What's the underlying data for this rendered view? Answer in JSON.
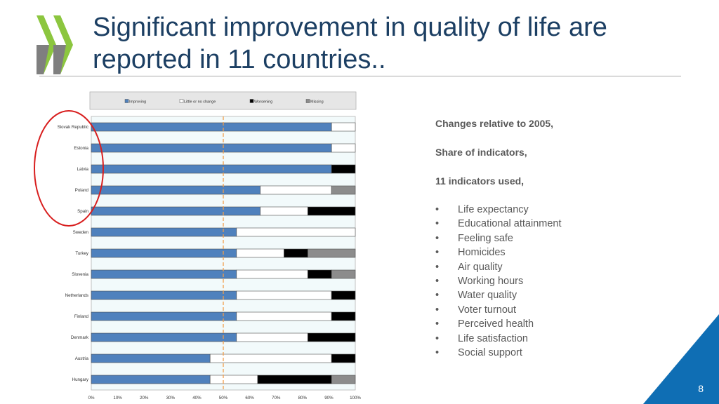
{
  "slide": {
    "title": "Significant improvement in quality of life are reported in 11 countries..",
    "page_number": "8",
    "colors": {
      "title": "#1c3f63",
      "logo_green": "#8cc63f",
      "logo_gray": "#7f7f7f",
      "corner": "#0f6eb4",
      "callout_circle": "#d81e1e"
    }
  },
  "sidebar": {
    "lines": [
      "Changes relative to 2005,",
      "Share of indicators,",
      "11 indicators used,"
    ],
    "bullet": "•",
    "indicators": [
      "Life expectancy",
      "Educational attainment",
      "Feeling safe",
      "Homicides",
      "Air quality",
      "Working hours",
      "Water quality",
      "Voter turnout",
      "Perceived health",
      "Life satisfaction",
      "Social support"
    ]
  },
  "chart_data": {
    "type": "bar",
    "orientation": "horizontal",
    "stacked": true,
    "categories": [
      "Slovak Republic",
      "Estonia",
      "Latvia",
      "Poland",
      "Spain",
      "Sweden",
      "Turkey",
      "Slovenia",
      "Netherlands",
      "Finland",
      "Denmark",
      "Austria",
      "Hungary"
    ],
    "series": [
      {
        "name": "Improving",
        "color": "#4f81bd",
        "values": [
          91,
          91,
          91,
          64,
          64,
          55,
          55,
          55,
          55,
          55,
          55,
          45,
          45
        ]
      },
      {
        "name": "Little or no change",
        "color": "#ffffff",
        "values": [
          9,
          9,
          0,
          27,
          18,
          45,
          18,
          27,
          36,
          36,
          27,
          46,
          18
        ]
      },
      {
        "name": "Worsening",
        "color": "#000000",
        "values": [
          0,
          0,
          9,
          0,
          18,
          0,
          9,
          9,
          9,
          9,
          18,
          9,
          28
        ]
      },
      {
        "name": "Missing",
        "color": "#8c8c8c",
        "values": [
          0,
          0,
          0,
          9,
          0,
          0,
          18,
          9,
          0,
          0,
          0,
          0,
          9
        ]
      }
    ],
    "x_ticks": [
      "0%",
      "10%",
      "20%",
      "30%",
      "40%",
      "50%",
      "60%",
      "70%",
      "80%",
      "90%",
      "100%"
    ],
    "xlim": [
      0,
      100
    ],
    "reference_line": {
      "value": 50,
      "color": "#f29d4a",
      "style": "dashed"
    },
    "legend_position": "top",
    "plot_background": "#f2fafb",
    "grid": false
  }
}
